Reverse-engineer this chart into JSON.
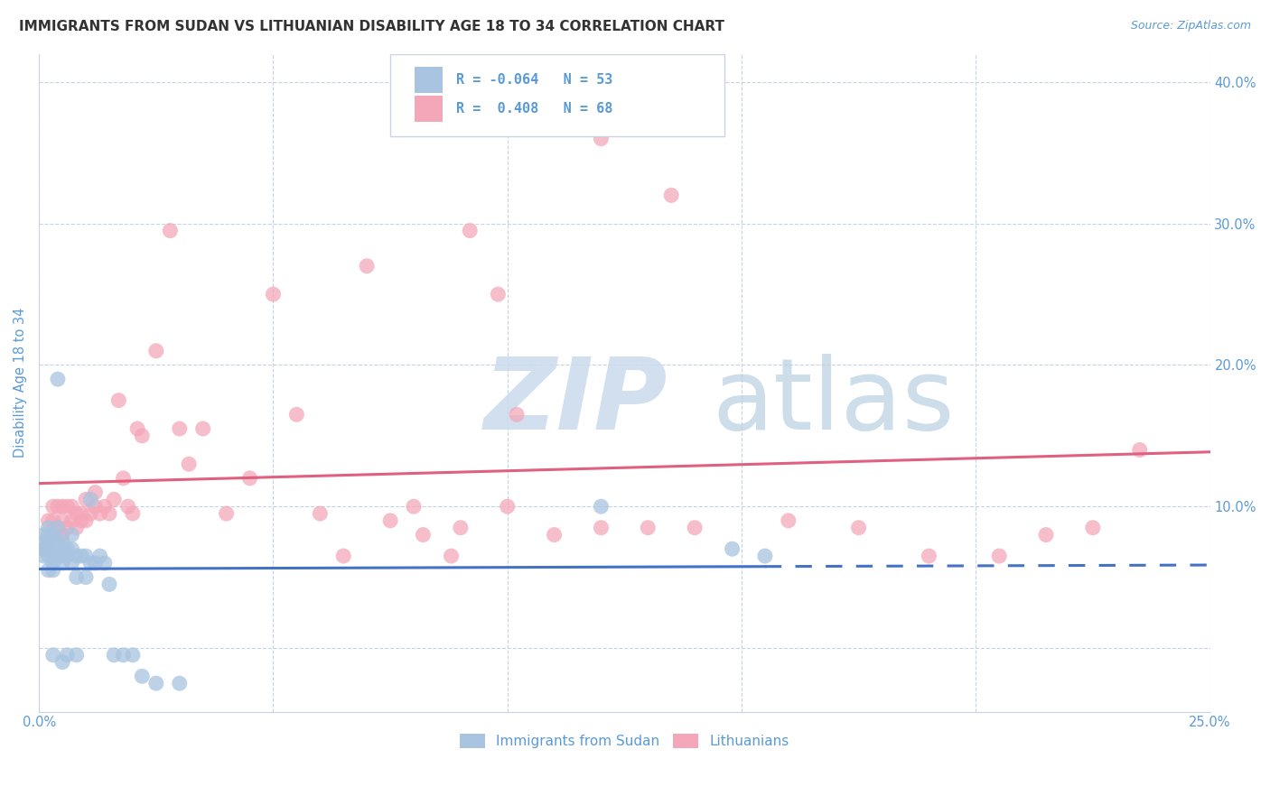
{
  "title": "IMMIGRANTS FROM SUDAN VS LITHUANIAN DISABILITY AGE 18 TO 34 CORRELATION CHART",
  "source": "Source: ZipAtlas.com",
  "ylabel": "Disability Age 18 to 34",
  "xlim": [
    0.0,
    0.25
  ],
  "ylim": [
    -0.045,
    0.42
  ],
  "yticks": [
    0.0,
    0.1,
    0.2,
    0.3,
    0.4
  ],
  "xticks": [
    0.0,
    0.05,
    0.1,
    0.15,
    0.2,
    0.25
  ],
  "legend_label1": "Immigrants from Sudan",
  "legend_label2": "Lithuanians",
  "r1": -0.064,
  "n1": 53,
  "r2": 0.408,
  "n2": 68,
  "color1": "#a8c4e0",
  "color2": "#f4a7b9",
  "line1_color": "#4472c4",
  "line2_color": "#e06080",
  "watermark_color": "#ccdcee",
  "axis_color": "#5b9bd5",
  "grid_color": "#c8d4e4",
  "sudan_x": [
    0.001,
    0.001,
    0.001,
    0.001,
    0.002,
    0.002,
    0.002,
    0.002,
    0.002,
    0.002,
    0.003,
    0.003,
    0.003,
    0.003,
    0.003,
    0.003,
    0.003,
    0.004,
    0.004,
    0.004,
    0.004,
    0.005,
    0.005,
    0.005,
    0.005,
    0.005,
    0.006,
    0.006,
    0.006,
    0.007,
    0.007,
    0.007,
    0.008,
    0.008,
    0.008,
    0.009,
    0.01,
    0.01,
    0.011,
    0.011,
    0.012,
    0.013,
    0.014,
    0.015,
    0.016,
    0.018,
    0.02,
    0.022,
    0.025,
    0.03,
    0.12,
    0.148,
    0.155
  ],
  "sudan_y": [
    0.065,
    0.07,
    0.075,
    0.08,
    0.055,
    0.065,
    0.07,
    0.075,
    0.08,
    0.085,
    0.055,
    0.06,
    0.065,
    0.07,
    0.075,
    0.08,
    -0.005,
    0.065,
    0.075,
    0.085,
    0.19,
    0.06,
    0.065,
    0.07,
    0.075,
    -0.01,
    0.065,
    0.07,
    -0.005,
    0.06,
    0.07,
    0.08,
    0.05,
    0.065,
    -0.005,
    0.065,
    0.05,
    0.065,
    0.06,
    0.105,
    0.06,
    0.065,
    0.06,
    0.045,
    -0.005,
    -0.005,
    -0.005,
    -0.02,
    -0.025,
    -0.025,
    0.1,
    0.07,
    0.065
  ],
  "lith_x": [
    0.001,
    0.002,
    0.002,
    0.003,
    0.003,
    0.003,
    0.004,
    0.004,
    0.005,
    0.005,
    0.005,
    0.006,
    0.006,
    0.007,
    0.007,
    0.008,
    0.008,
    0.009,
    0.009,
    0.01,
    0.01,
    0.011,
    0.012,
    0.012,
    0.013,
    0.014,
    0.015,
    0.016,
    0.017,
    0.018,
    0.019,
    0.02,
    0.021,
    0.022,
    0.025,
    0.028,
    0.03,
    0.032,
    0.035,
    0.04,
    0.045,
    0.05,
    0.055,
    0.06,
    0.07,
    0.08,
    0.09,
    0.1,
    0.11,
    0.12,
    0.13,
    0.14,
    0.16,
    0.175,
    0.19,
    0.205,
    0.215,
    0.225,
    0.235,
    0.12,
    0.135,
    0.098,
    0.088,
    0.065,
    0.075,
    0.082,
    0.092,
    0.102
  ],
  "lith_y": [
    0.07,
    0.075,
    0.09,
    0.08,
    0.09,
    0.1,
    0.085,
    0.1,
    0.08,
    0.09,
    0.1,
    0.085,
    0.1,
    0.09,
    0.1,
    0.085,
    0.095,
    0.09,
    0.095,
    0.09,
    0.105,
    0.095,
    0.1,
    0.11,
    0.095,
    0.1,
    0.095,
    0.105,
    0.175,
    0.12,
    0.1,
    0.095,
    0.155,
    0.15,
    0.21,
    0.295,
    0.155,
    0.13,
    0.155,
    0.095,
    0.12,
    0.25,
    0.165,
    0.095,
    0.27,
    0.1,
    0.085,
    0.1,
    0.08,
    0.085,
    0.085,
    0.085,
    0.09,
    0.085,
    0.065,
    0.065,
    0.08,
    0.085,
    0.14,
    0.36,
    0.32,
    0.25,
    0.065,
    0.065,
    0.09,
    0.08,
    0.295,
    0.165
  ]
}
